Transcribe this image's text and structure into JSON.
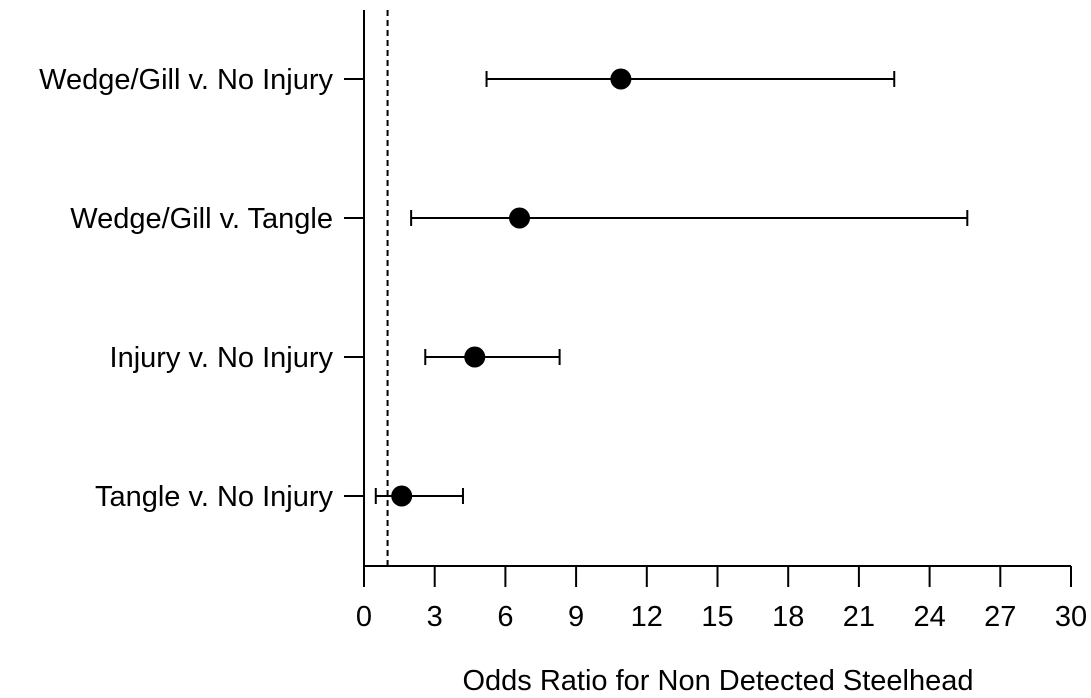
{
  "chart_data": {
    "type": "scatter",
    "subtype": "forest-plot",
    "xlabel": "Odds Ratio for Non Detected Steelhead",
    "ylabel": "",
    "title": "",
    "xlim": [
      0,
      30
    ],
    "xticks": [
      0,
      3,
      6,
      9,
      12,
      15,
      18,
      21,
      24,
      27,
      30
    ],
    "xtick_labels": [
      "0",
      "3",
      "6",
      "9",
      "12",
      "15",
      "18",
      "21",
      "24",
      "27",
      "30"
    ],
    "reference_line": 1,
    "grid": false,
    "legend": "none",
    "categories": [
      "Wedge/Gill v. No Injury",
      "Wedge/Gill v. Tangle",
      "Injury v. No Injury",
      "Tangle v. No Injury"
    ],
    "estimates": [
      10.9,
      6.6,
      4.7,
      1.6
    ],
    "lower": [
      5.2,
      2.0,
      2.6,
      0.5
    ],
    "upper": [
      22.5,
      25.6,
      8.3,
      4.2
    ],
    "colors": {
      "marker": "#000000",
      "axis": "#000000"
    }
  }
}
